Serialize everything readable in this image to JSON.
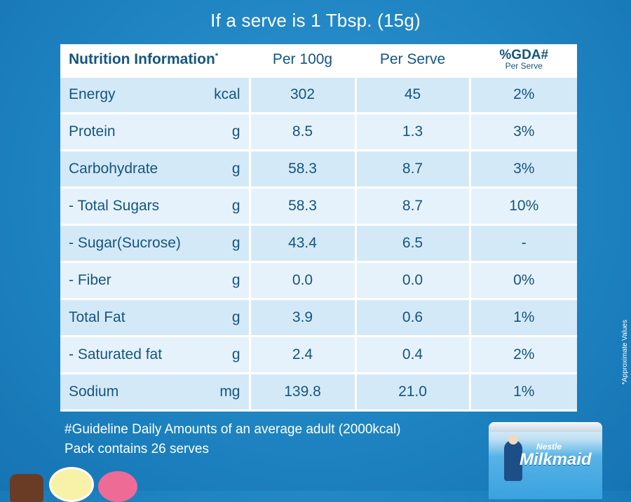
{
  "serve_title": "If a serve is 1 Tbsp. (15g)",
  "table": {
    "header": {
      "name": "Nutrition Information",
      "name_mark": "*",
      "per_100g": "Per 100g",
      "per_serve": "Per Serve",
      "gda": "%GDA#",
      "gda_sub": "Per Serve"
    },
    "rows": [
      {
        "name": "Energy",
        "unit": "kcal",
        "per_100g": "302",
        "per_serve": "45",
        "gda": "2%"
      },
      {
        "name": "Protein",
        "unit": "g",
        "per_100g": "8.5",
        "per_serve": "1.3",
        "gda": "3%"
      },
      {
        "name": "Carbohydrate",
        "unit": "g",
        "per_100g": "58.3",
        "per_serve": "8.7",
        "gda": "3%"
      },
      {
        "name": "- Total Sugars",
        "unit": "g",
        "per_100g": "58.3",
        "per_serve": "8.7",
        "gda": "10%"
      },
      {
        "name": "- Sugar(Sucrose)",
        "unit": "g",
        "per_100g": "43.4",
        "per_serve": "6.5",
        "gda": "-"
      },
      {
        "name": "- Fiber",
        "unit": "g",
        "per_100g": "0.0",
        "per_serve": "0.0",
        "gda": "0%"
      },
      {
        "name": "Total Fat",
        "unit": "g",
        "per_100g": "3.9",
        "per_serve": "0.6",
        "gda": "1%"
      },
      {
        "name": "- Saturated fat",
        "unit": "g",
        "per_100g": "2.4",
        "per_serve": "0.4",
        "gda": "2%"
      },
      {
        "name": "Sodium",
        "unit": "mg",
        "per_100g": "139.8",
        "per_serve": "21.0",
        "gda": "1%"
      }
    ]
  },
  "side_note": "*Approximate Values",
  "footnotes": {
    "gda_note": "#Guideline Daily Amounts of an average adult (2000kcal)",
    "pack_note": "Pack contains 26 serves"
  },
  "product": {
    "brand_top": "Nestle",
    "brand_main": "Milkmaid"
  },
  "colors": {
    "background": "#1f84c2",
    "table_text": "#15557f",
    "row_shade": "#d4e9f7",
    "row_shade_alt": "#e6f2fb"
  }
}
